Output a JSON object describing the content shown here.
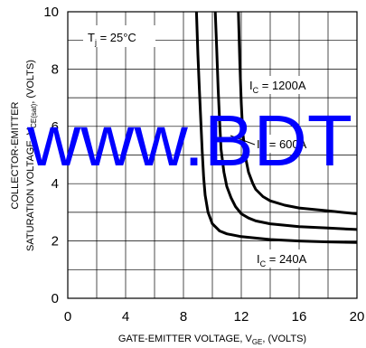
{
  "chart_data": {
    "type": "line",
    "xlabel": "GATE-EMITTER VOLTAGE, V",
    "xlabel_sub": "GE",
    "xlabel_suffix": ", (VOLTS)",
    "ylabel_line1": "COLLECTOR-EMITTER",
    "ylabel_line2": "SATURATION VOLTAGE, V",
    "ylabel_sub": "CE(sat)",
    "ylabel_suffix": ", (VOLTS)",
    "xlim": [
      0,
      20
    ],
    "ylim": [
      0,
      10
    ],
    "x_ticks": [
      "0",
      "4",
      "8",
      "12",
      "16",
      "20"
    ],
    "y_ticks": [
      "0",
      "2",
      "4",
      "6",
      "8",
      "10"
    ],
    "grid": true,
    "condition": {
      "main": "T",
      "sub": "j",
      "suffix": " = 25°C"
    },
    "series": [
      {
        "name": "240A",
        "x": [
          8.9,
          9.0,
          9.1,
          9.2,
          9.3,
          9.4,
          9.5,
          9.7,
          10.0,
          10.5,
          11.0,
          12.0,
          13.0,
          14.0,
          16.0,
          18.0,
          20.0
        ],
        "y": [
          10.0,
          8.5,
          7.3,
          6.2,
          5.1,
          4.2,
          3.6,
          3.0,
          2.6,
          2.35,
          2.25,
          2.15,
          2.1,
          2.05,
          2.0,
          1.97,
          1.95
        ]
      },
      {
        "name": "600A",
        "x": [
          10.2,
          10.3,
          10.4,
          10.5,
          10.6,
          10.8,
          11.0,
          11.3,
          11.6,
          12.0,
          12.5,
          13.0,
          14.0,
          16.0,
          18.0,
          20.0
        ],
        "y": [
          10.0,
          8.7,
          7.3,
          6.2,
          5.2,
          4.4,
          3.9,
          3.5,
          3.2,
          2.95,
          2.8,
          2.7,
          2.6,
          2.5,
          2.45,
          2.4
        ]
      },
      {
        "name": "1200A",
        "x": [
          11.8,
          11.9,
          12.0,
          12.1,
          12.3,
          12.5,
          12.8,
          13.0,
          13.5,
          14.0,
          15.0,
          16.0,
          18.0,
          20.0
        ],
        "y": [
          10.0,
          8.2,
          6.8,
          5.8,
          4.9,
          4.4,
          4.0,
          3.8,
          3.55,
          3.4,
          3.25,
          3.15,
          3.05,
          2.95
        ]
      }
    ],
    "labels": [
      {
        "main": "I",
        "sub": "C",
        "suffix": " = 1200A"
      },
      {
        "main": "I",
        "sub": "C",
        "suffix": " = 600A"
      },
      {
        "main": "I",
        "sub": "C",
        "suffix": " = 240A"
      }
    ],
    "watermark": "www.BDT"
  }
}
